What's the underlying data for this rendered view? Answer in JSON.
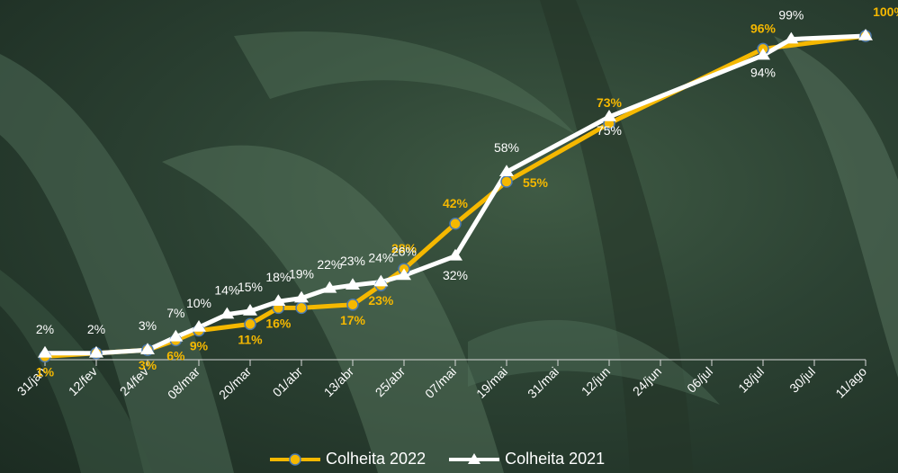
{
  "chart_data": {
    "type": "line",
    "categories": [
      "31/jan",
      "12/fev",
      "24/fev",
      "08/mar",
      "20/mar",
      "01/abr",
      "13/abr",
      "25/abr",
      "07/mai",
      "19/mai",
      "31/mai",
      "12/jun",
      "24/jun",
      "06/jul",
      "18/jul",
      "30/jul",
      "11/ago"
    ],
    "series": [
      {
        "name": "Colheita 2022",
        "color": "#F5B800",
        "marker": "circle",
        "points": [
          {
            "x": "31/jan",
            "y": 1,
            "label": "1%"
          },
          {
            "x": "12/fev",
            "y": 2,
            "label": ""
          },
          {
            "x": "24/fev",
            "y": 3,
            "label": "3%"
          },
          {
            "x": "24/fev",
            "y": 6,
            "label": "6%"
          },
          {
            "x": "08/mar",
            "y": 9,
            "label": "9%"
          },
          {
            "x": "20/mar",
            "y": 11,
            "label": "11%"
          },
          {
            "x": "20/mar",
            "y": 16,
            "label": "16%"
          },
          {
            "x": "01/abr",
            "y": 16,
            "label": ""
          },
          {
            "x": "13/abr",
            "y": 17,
            "label": "17%"
          },
          {
            "x": "13/abr",
            "y": 23,
            "label": "23%"
          },
          {
            "x": "25/abr",
            "y": 28,
            "label": "28%"
          },
          {
            "x": "07/mai",
            "y": 42,
            "label": "42%"
          },
          {
            "x": "19/mai",
            "y": 55,
            "label": "55%"
          },
          {
            "x": "12/jun",
            "y": 73,
            "label": "73%"
          },
          {
            "x": "18/jul",
            "y": 96,
            "label": "96%"
          },
          {
            "x": "11/ago",
            "y": 100,
            "label": "100%"
          }
        ]
      },
      {
        "name": "Colheita 2021",
        "color": "#FFFFFF",
        "marker": "triangle",
        "points": [
          {
            "x": "31/jan",
            "y": 2,
            "label": "2%"
          },
          {
            "x": "12/fev",
            "y": 2,
            "label": "2%"
          },
          {
            "x": "24/fev",
            "y": 3,
            "label": "3%"
          },
          {
            "x": "24/fev",
            "y": 7,
            "label": "7%"
          },
          {
            "x": "08/mar",
            "y": 10,
            "label": "10%"
          },
          {
            "x": "08/mar",
            "y": 14,
            "label": "14%"
          },
          {
            "x": "20/mar",
            "y": 15,
            "label": "15%"
          },
          {
            "x": "20/mar",
            "y": 18,
            "label": "18%"
          },
          {
            "x": "01/abr",
            "y": 19,
            "label": "19%"
          },
          {
            "x": "01/abr",
            "y": 22,
            "label": "22%"
          },
          {
            "x": "13/abr",
            "y": 23,
            "label": "23%"
          },
          {
            "x": "13/abr",
            "y": 24,
            "label": "24%"
          },
          {
            "x": "25/abr",
            "y": 26,
            "label": "26%"
          },
          {
            "x": "07/mai",
            "y": 32,
            "label": "32%"
          },
          {
            "x": "19/mai",
            "y": 58,
            "label": "58%"
          },
          {
            "x": "12/jun",
            "y": 75,
            "label": "75%"
          },
          {
            "x": "18/jul",
            "y": 94,
            "label": "94%"
          },
          {
            "x": "18/jul",
            "y": 99,
            "label": "99%"
          },
          {
            "x": "11/ago",
            "y": 100,
            "label": ""
          }
        ]
      }
    ],
    "ylim": [
      0,
      100
    ],
    "grid": false,
    "legend_position": "bottom"
  },
  "legend": {
    "series_2022": "Colheita 2022",
    "series_2021": "Colheita 2021"
  }
}
